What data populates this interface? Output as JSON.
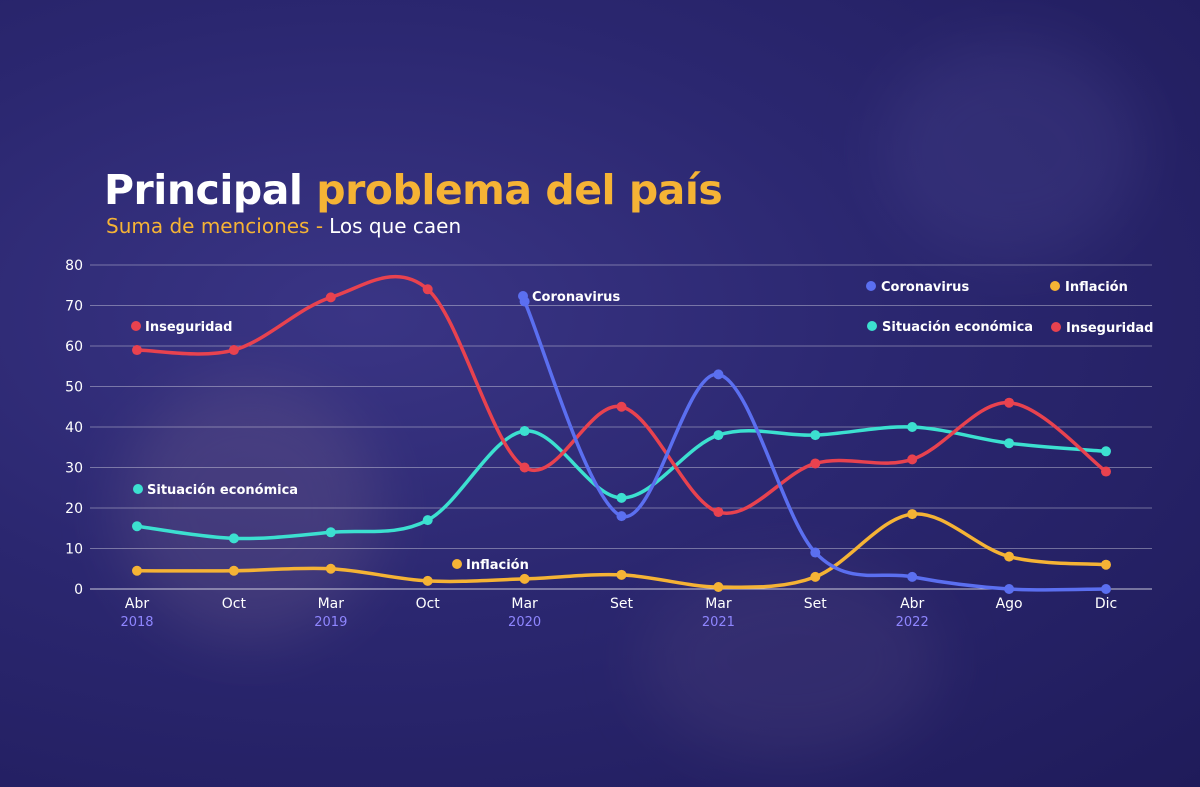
{
  "title_part1": "Principal",
  "title_part2": "problema del país",
  "subtitle_part1": "Suma de menciones -",
  "subtitle_part2": "Los que caen",
  "chart_data": {
    "type": "line",
    "categories": [
      "Abr",
      "Oct",
      "Mar",
      "Oct",
      "Mar",
      "Set",
      "Mar",
      "Set",
      "Abr",
      "Ago",
      "Dic"
    ],
    "years": [
      "2018",
      "",
      "2019",
      "",
      "2020",
      "",
      "2021",
      "",
      "2022",
      "",
      ""
    ],
    "yticks": [
      0,
      10,
      20,
      30,
      40,
      50,
      60,
      70,
      80
    ],
    "ylim": [
      0,
      80
    ],
    "series": [
      {
        "name": "Inseguridad",
        "color": "#e8424f",
        "values": [
          59,
          59,
          72,
          74,
          30,
          45,
          19,
          31,
          32,
          46,
          29
        ]
      },
      {
        "name": "Coronavirus",
        "color": "#5b6ff0",
        "values": [
          null,
          null,
          null,
          null,
          71,
          18,
          53,
          9,
          3,
          0,
          0
        ]
      },
      {
        "name": "Situación económica",
        "color": "#3ce0d0",
        "values": [
          15.5,
          12.5,
          14,
          17,
          39,
          22.5,
          38,
          38,
          40,
          36,
          34
        ]
      },
      {
        "name": "Inflación",
        "color": "#f5b335",
        "values": [
          4.5,
          4.5,
          5,
          2,
          2.5,
          3.5,
          0.5,
          3,
          18.5,
          8,
          6
        ]
      }
    ],
    "inline_labels": [
      {
        "text": "Inseguridad",
        "color": "#e8424f"
      },
      {
        "text": "Coronavirus",
        "color": "#5b6ff0"
      },
      {
        "text": "Situación económica",
        "color": "#3ce0d0"
      },
      {
        "text": "Inflación",
        "color": "#f5b335"
      }
    ],
    "legend": [
      {
        "text": "Coronavirus",
        "color": "#5b6ff0"
      },
      {
        "text": "Inflación",
        "color": "#f5b335"
      },
      {
        "text": "Situación económica",
        "color": "#3ce0d0"
      },
      {
        "text": "Inseguridad",
        "color": "#e8424f"
      }
    ],
    "legend_position": "top-right"
  }
}
